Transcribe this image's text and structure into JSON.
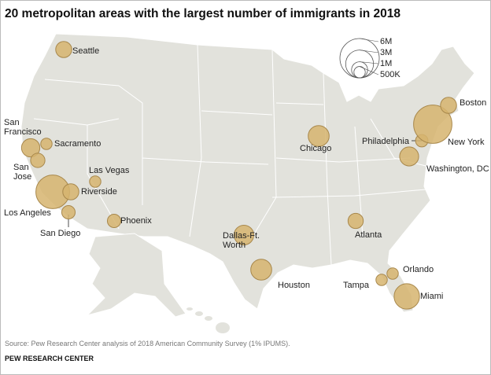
{
  "chart_data": {
    "type": "bubble_map",
    "title": "20 metropolitan areas with the largest number of immigrants in 2018",
    "color": "#d6b46e",
    "cities": [
      {
        "name": "Seattle",
        "value": 1000000
      },
      {
        "name": "San Francisco",
        "value": 1300000
      },
      {
        "name": "Sacramento",
        "value": 500000
      },
      {
        "name": "San Jose",
        "value": 800000
      },
      {
        "name": "Los Angeles",
        "value": 4400000
      },
      {
        "name": "Riverside",
        "value": 1000000
      },
      {
        "name": "San Diego",
        "value": 700000
      },
      {
        "name": "Las Vegas",
        "value": 500000
      },
      {
        "name": "Phoenix",
        "value": 700000
      },
      {
        "name": "Dallas-Ft. Worth",
        "value": 1500000
      },
      {
        "name": "Houston",
        "value": 1700000
      },
      {
        "name": "Chicago",
        "value": 1700000
      },
      {
        "name": "Atlanta",
        "value": 900000
      },
      {
        "name": "Tampa",
        "value": 500000
      },
      {
        "name": "Orlando",
        "value": 500000
      },
      {
        "name": "Miami",
        "value": 2500000
      },
      {
        "name": "Washington, DC",
        "value": 1400000
      },
      {
        "name": "Philadelphia",
        "value": 600000
      },
      {
        "name": "New York",
        "value": 5700000
      },
      {
        "name": "Boston",
        "value": 1000000
      }
    ],
    "size_legend": [
      {
        "value": 6000000,
        "label": "6M"
      },
      {
        "value": 3000000,
        "label": "3M"
      },
      {
        "value": 1000000,
        "label": "1M"
      },
      {
        "value": 500000,
        "label": "500K"
      }
    ],
    "source": "Source: Pew Research Center analysis of 2018 American Community Survey (1% IPUMS).",
    "footer": "PEW RESEARCH CENTER"
  }
}
